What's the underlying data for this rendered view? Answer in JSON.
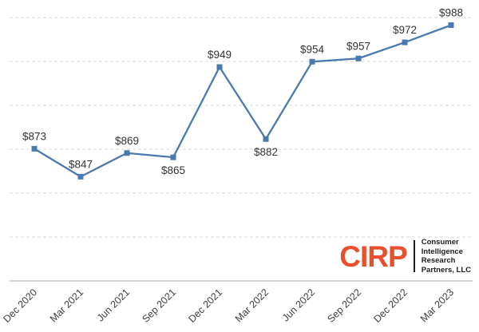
{
  "chart_data": {
    "type": "line",
    "title": "",
    "xlabel": "",
    "ylabel": "",
    "categories": [
      "Dec 2020",
      "Mar 2021",
      "Jun 2021",
      "Sep 2021",
      "Dec 2021",
      "Mar 2022",
      "Jun 2022",
      "Sep 2022",
      "Dec 2022",
      "Mar 2023"
    ],
    "values": [
      873,
      847,
      869,
      865,
      949,
      882,
      954,
      957,
      972,
      988
    ],
    "labels": [
      "$873",
      "$847",
      "$869",
      "$865",
      "$949",
      "$882",
      "$954",
      "$957",
      "$972",
      "$988"
    ],
    "label_positions": [
      "above",
      "above",
      "above",
      "below",
      "above",
      "below",
      "above",
      "above",
      "above",
      "above"
    ],
    "ylim": [
      750,
      1001
    ],
    "grid": "dashed horizontal gridlines, no y-axis tick labels",
    "legend": "none",
    "marker": "square",
    "line_color": "#4a7aae",
    "grid_color": "#d8d8d8",
    "axis_color": "#bfbfbf",
    "data_label_color": "#333333",
    "axis_label_color": "#404040"
  },
  "logo": {
    "acronym": "CIRP",
    "lines": [
      "Consumer",
      "Intelligence",
      "Research",
      "Partners, LLC"
    ],
    "accent_color": "#e8502b",
    "text_color": "#1d1d1b"
  }
}
